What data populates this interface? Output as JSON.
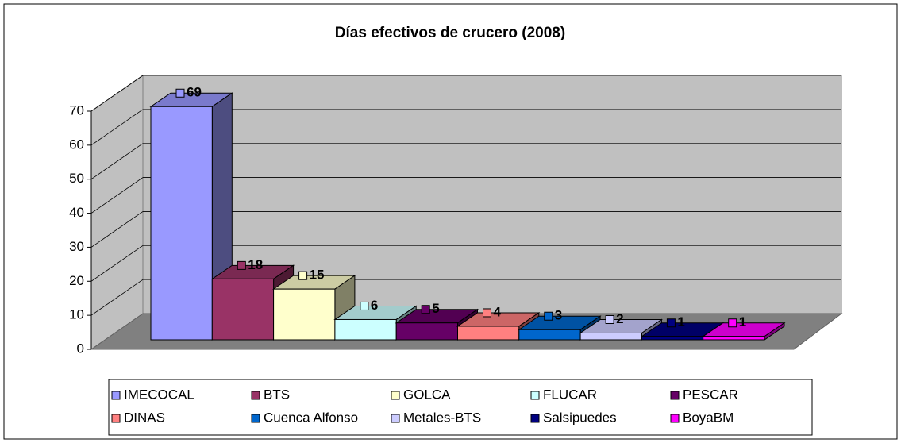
{
  "chart_data": {
    "type": "bar3d",
    "title": "Días efectivos de crucero (2008)",
    "series": [
      {
        "name": "IMECOCAL",
        "color": "#9999ff",
        "values": [
          69
        ]
      },
      {
        "name": "BTS",
        "color": "#993366",
        "values": [
          18
        ]
      },
      {
        "name": "GOLCA",
        "color": "#ffffcc",
        "values": [
          15
        ]
      },
      {
        "name": "FLUCAR",
        "color": "#ccffff",
        "values": [
          6
        ]
      },
      {
        "name": "PESCAR",
        "color": "#660066",
        "values": [
          5
        ]
      },
      {
        "name": "DINAS",
        "color": "#ff8080",
        "values": [
          4
        ]
      },
      {
        "name": "Cuenca Alfonso",
        "color": "#0066cc",
        "values": [
          3
        ]
      },
      {
        "name": "Metales-BTS",
        "color": "#ccccff",
        "values": [
          2
        ]
      },
      {
        "name": "Salsipuedes",
        "color": "#000080",
        "values": [
          1
        ]
      },
      {
        "name": "BoyaBM",
        "color": "#ff00ff",
        "values": [
          1
        ]
      }
    ],
    "ylim": [
      0,
      70
    ],
    "yticks": [
      0,
      10,
      20,
      30,
      40,
      50,
      60,
      70
    ],
    "grid": true,
    "legend": "bottom"
  }
}
